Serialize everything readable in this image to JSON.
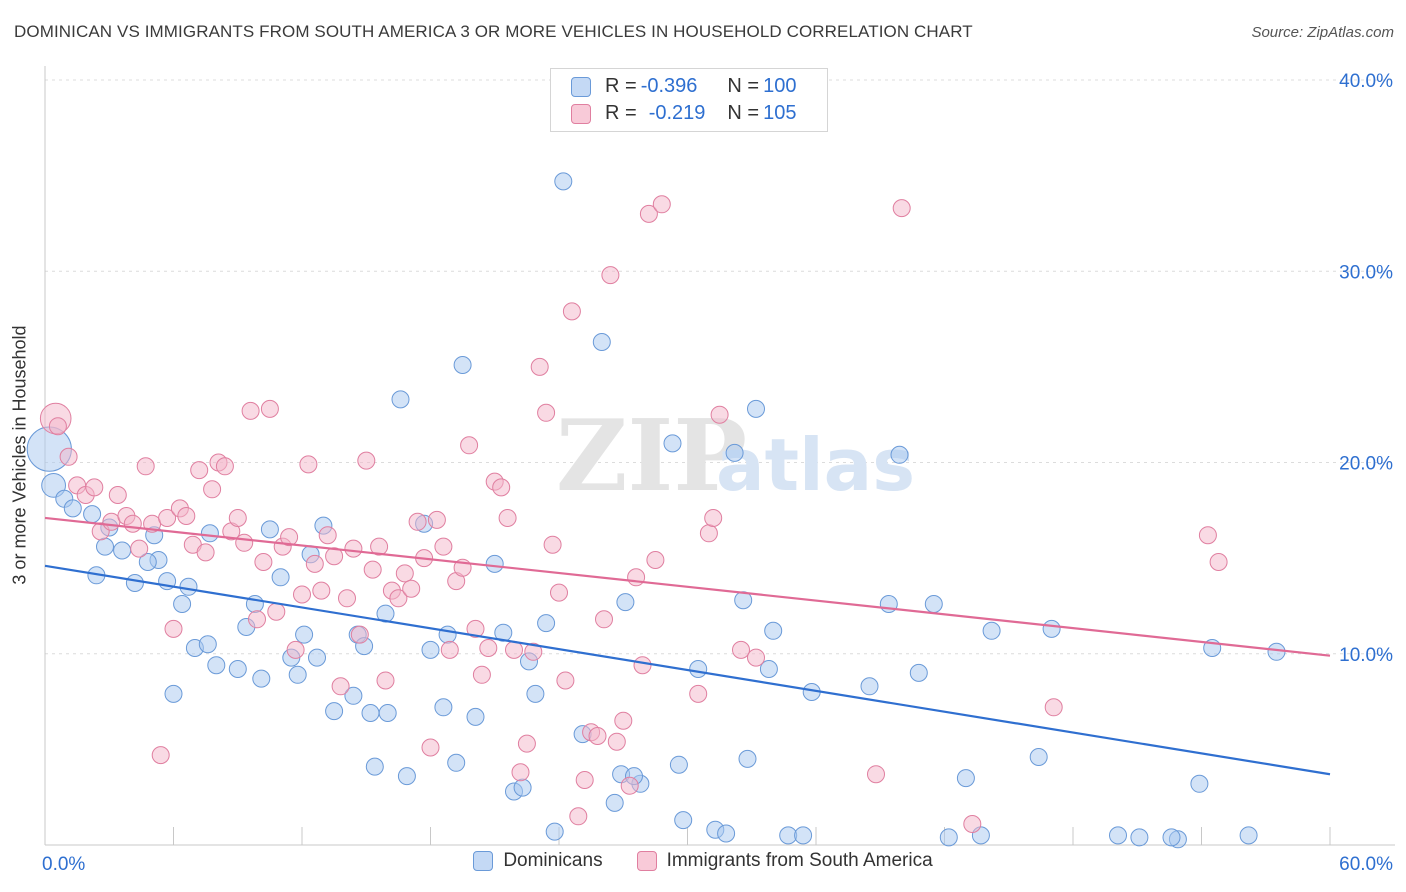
{
  "title": "DOMINICAN VS IMMIGRANTS FROM SOUTH AMERICA 3 OR MORE VEHICLES IN HOUSEHOLD CORRELATION CHART",
  "source": "Source: ZipAtlas.com",
  "watermark": {
    "zip": "ZIP",
    "atlas": "atlas"
  },
  "stats": [
    {
      "r_label": "R = ",
      "r_value": "-0.396",
      "n_label": "N = ",
      "n_value": "100",
      "color": "#a8c8f0"
    },
    {
      "r_label": "R = ",
      "r_value": "-0.219",
      "n_label": "N = ",
      "n_value": "105",
      "color": "#f4b6ca"
    }
  ],
  "legend": [
    {
      "label": "Dominicans",
      "color": "#a8c8f0",
      "border": "#6a9ad8"
    },
    {
      "label": "Immigrants from South America",
      "color": "#f4b6ca",
      "border": "#e07fa0"
    }
  ],
  "chart_data": {
    "type": "scatter",
    "title": "DOMINICAN VS IMMIGRANTS FROM SOUTH AMERICA 3 OR MORE VEHICLES IN HOUSEHOLD CORRELATION CHART",
    "ylabel": "3 or more Vehicles in Household",
    "xlabel": "",
    "xlim": [
      0,
      60
    ],
    "ylim": [
      0,
      40
    ],
    "x_tick_labels": [
      "0.0%",
      "60.0%"
    ],
    "y_ticks": [
      10,
      20,
      30,
      40
    ],
    "y_tick_labels": [
      "10.0%",
      "20.0%",
      "30.0%",
      "40.0%"
    ],
    "grid": true,
    "legend_position": "bottom",
    "series": [
      {
        "name": "Dominicans",
        "color": "#6a9ad8",
        "fill": "#a8c8f0",
        "line_color": "#2f6fd0",
        "trend": {
          "x": [
            0,
            60
          ],
          "y": [
            14.6,
            3.7
          ]
        },
        "points": [
          [
            0.2,
            20.7,
            2.6
          ],
          [
            0.4,
            18.8,
            1.4
          ],
          [
            0.9,
            18.1,
            1
          ],
          [
            1.3,
            17.6,
            1
          ],
          [
            2.2,
            17.3,
            1
          ],
          [
            3.0,
            16.6,
            1
          ],
          [
            2.8,
            15.6,
            1
          ],
          [
            3.6,
            15.4,
            1
          ],
          [
            5.1,
            16.2,
            1
          ],
          [
            2.4,
            14.1,
            1
          ],
          [
            4.2,
            13.7,
            1
          ],
          [
            5.3,
            14.9,
            1
          ],
          [
            4.8,
            14.8,
            1
          ],
          [
            5.7,
            13.8,
            1
          ],
          [
            6.4,
            12.6,
            1
          ],
          [
            6.7,
            13.5,
            1
          ],
          [
            7.7,
            16.3,
            1
          ],
          [
            7.0,
            10.3,
            1
          ],
          [
            7.6,
            10.5,
            1
          ],
          [
            8.0,
            9.4,
            1
          ],
          [
            9.0,
            9.2,
            1
          ],
          [
            6.0,
            7.9,
            1
          ],
          [
            9.4,
            11.4,
            1
          ],
          [
            9.8,
            12.6,
            1
          ],
          [
            10.1,
            8.7,
            1
          ],
          [
            10.5,
            16.5,
            1
          ],
          [
            11.0,
            14.0,
            1
          ],
          [
            11.5,
            9.8,
            1
          ],
          [
            11.8,
            8.9,
            1
          ],
          [
            12.1,
            11.0,
            1
          ],
          [
            12.7,
            9.8,
            1
          ],
          [
            13.0,
            16.7,
            1
          ],
          [
            12.4,
            15.2,
            1
          ],
          [
            13.5,
            7.0,
            1
          ],
          [
            14.4,
            7.8,
            1
          ],
          [
            14.6,
            11.0,
            1
          ],
          [
            14.9,
            10.4,
            1
          ],
          [
            15.2,
            6.9,
            1
          ],
          [
            15.4,
            4.1,
            1
          ],
          [
            15.9,
            12.1,
            1
          ],
          [
            16.0,
            6.9,
            1
          ],
          [
            16.6,
            23.3,
            1
          ],
          [
            16.9,
            3.6,
            1
          ],
          [
            17.7,
            16.8,
            1
          ],
          [
            18.0,
            10.2,
            1
          ],
          [
            18.6,
            7.2,
            1
          ],
          [
            18.8,
            11.0,
            1
          ],
          [
            19.2,
            4.3,
            1
          ],
          [
            19.5,
            25.1,
            1
          ],
          [
            20.1,
            6.7,
            1
          ],
          [
            21.0,
            14.7,
            1
          ],
          [
            21.4,
            11.1,
            1
          ],
          [
            21.9,
            2.8,
            1
          ],
          [
            22.3,
            3.0,
            1
          ],
          [
            22.6,
            9.6,
            1
          ],
          [
            22.9,
            7.9,
            1
          ],
          [
            23.4,
            11.6,
            1
          ],
          [
            23.8,
            0.7,
            1
          ],
          [
            24.2,
            34.7,
            1
          ],
          [
            25.1,
            5.8,
            1
          ],
          [
            26.0,
            26.3,
            1
          ],
          [
            26.6,
            2.2,
            1
          ],
          [
            27.1,
            12.7,
            1
          ],
          [
            26.9,
            3.7,
            1
          ],
          [
            27.8,
            3.2,
            1
          ],
          [
            27.5,
            3.6,
            1
          ],
          [
            29.3,
            21.0,
            1
          ],
          [
            29.6,
            4.2,
            1
          ],
          [
            30.5,
            9.2,
            1
          ],
          [
            29.8,
            1.3,
            1
          ],
          [
            31.3,
            0.8,
            1
          ],
          [
            31.8,
            0.6,
            1
          ],
          [
            32.2,
            20.5,
            1
          ],
          [
            32.6,
            12.8,
            1
          ],
          [
            32.8,
            4.5,
            1
          ],
          [
            33.2,
            22.8,
            1
          ],
          [
            33.8,
            9.2,
            1
          ],
          [
            34.0,
            11.2,
            1
          ],
          [
            34.7,
            0.5,
            1
          ],
          [
            35.4,
            0.5,
            1
          ],
          [
            35.8,
            8.0,
            1
          ],
          [
            38.5,
            8.3,
            1
          ],
          [
            39.4,
            12.6,
            1
          ],
          [
            39.9,
            20.4,
            1
          ],
          [
            40.8,
            9.0,
            1
          ],
          [
            41.5,
            12.6,
            1
          ],
          [
            42.2,
            0.4,
            1
          ],
          [
            43.0,
            3.5,
            1
          ],
          [
            43.7,
            0.5,
            1
          ],
          [
            44.2,
            11.2,
            1
          ],
          [
            46.4,
            4.6,
            1
          ],
          [
            47.0,
            11.3,
            1
          ],
          [
            50.1,
            0.5,
            1
          ],
          [
            51.1,
            0.4,
            1
          ],
          [
            52.9,
            0.3,
            1
          ],
          [
            52.6,
            0.4,
            1
          ],
          [
            53.9,
            3.2,
            1
          ],
          [
            54.5,
            10.3,
            1
          ],
          [
            57.5,
            10.1,
            1
          ],
          [
            56.2,
            0.5,
            1
          ]
        ]
      },
      {
        "name": "Immigrants from South America",
        "color": "#e07fa0",
        "fill": "#f4b6ca",
        "line_color": "#e06a95",
        "trend": {
          "x": [
            0,
            60
          ],
          "y": [
            17.1,
            9.9
          ]
        },
        "points": [
          [
            0.5,
            22.3,
            1.8
          ],
          [
            0.6,
            21.9,
            1
          ],
          [
            1.1,
            20.3,
            1
          ],
          [
            1.5,
            18.8,
            1
          ],
          [
            1.9,
            18.3,
            1
          ],
          [
            2.3,
            18.7,
            1
          ],
          [
            2.6,
            16.4,
            1
          ],
          [
            3.1,
            16.9,
            1
          ],
          [
            3.4,
            18.3,
            1
          ],
          [
            3.8,
            17.2,
            1
          ],
          [
            4.1,
            16.8,
            1
          ],
          [
            4.4,
            15.5,
            1
          ],
          [
            4.7,
            19.8,
            1
          ],
          [
            5.0,
            16.8,
            1
          ],
          [
            5.4,
            4.7,
            1
          ],
          [
            5.7,
            17.1,
            1
          ],
          [
            6.0,
            11.3,
            1
          ],
          [
            6.3,
            17.6,
            1
          ],
          [
            6.6,
            17.2,
            1
          ],
          [
            6.9,
            15.7,
            1
          ],
          [
            7.2,
            19.6,
            1
          ],
          [
            7.5,
            15.3,
            1
          ],
          [
            7.8,
            18.6,
            1
          ],
          [
            8.1,
            20.0,
            1
          ],
          [
            8.4,
            19.8,
            1
          ],
          [
            8.7,
            16.4,
            1
          ],
          [
            9.0,
            17.1,
            1
          ],
          [
            9.3,
            15.8,
            1
          ],
          [
            9.6,
            22.7,
            1
          ],
          [
            9.9,
            11.8,
            1
          ],
          [
            10.2,
            14.8,
            1
          ],
          [
            10.5,
            22.8,
            1
          ],
          [
            10.8,
            12.2,
            1
          ],
          [
            11.1,
            15.6,
            1
          ],
          [
            11.4,
            16.1,
            1
          ],
          [
            11.7,
            10.2,
            1
          ],
          [
            12.0,
            13.1,
            1
          ],
          [
            12.3,
            19.9,
            1
          ],
          [
            12.6,
            14.7,
            1
          ],
          [
            12.9,
            13.3,
            1
          ],
          [
            13.2,
            16.2,
            1
          ],
          [
            13.5,
            15.1,
            1
          ],
          [
            13.8,
            8.3,
            1
          ],
          [
            14.1,
            12.9,
            1
          ],
          [
            14.4,
            15.5,
            1
          ],
          [
            14.7,
            11.0,
            1
          ],
          [
            15.0,
            20.1,
            1
          ],
          [
            15.3,
            14.4,
            1
          ],
          [
            15.6,
            15.6,
            1
          ],
          [
            15.9,
            8.6,
            1
          ],
          [
            16.2,
            13.3,
            1
          ],
          [
            16.5,
            12.9,
            1
          ],
          [
            16.8,
            14.2,
            1
          ],
          [
            17.1,
            13.4,
            1
          ],
          [
            17.4,
            16.9,
            1
          ],
          [
            17.7,
            15.0,
            1
          ],
          [
            18.0,
            5.1,
            1
          ],
          [
            18.3,
            17.0,
            1
          ],
          [
            18.6,
            15.6,
            1
          ],
          [
            18.9,
            10.2,
            1
          ],
          [
            19.2,
            13.8,
            1
          ],
          [
            19.5,
            14.5,
            1
          ],
          [
            19.8,
            20.9,
            1
          ],
          [
            20.1,
            11.3,
            1
          ],
          [
            20.4,
            8.9,
            1
          ],
          [
            20.7,
            10.3,
            1
          ],
          [
            21.0,
            19.0,
            1
          ],
          [
            21.3,
            18.7,
            1
          ],
          [
            21.6,
            17.1,
            1
          ],
          [
            21.9,
            10.2,
            1
          ],
          [
            22.2,
            3.8,
            1
          ],
          [
            22.5,
            5.3,
            1
          ],
          [
            22.8,
            10.1,
            1
          ],
          [
            23.1,
            25.0,
            1
          ],
          [
            23.4,
            22.6,
            1
          ],
          [
            23.7,
            15.7,
            1
          ],
          [
            24.0,
            13.2,
            1
          ],
          [
            24.3,
            8.6,
            1
          ],
          [
            24.6,
            27.9,
            1
          ],
          [
            24.9,
            1.5,
            1
          ],
          [
            25.2,
            3.4,
            1
          ],
          [
            25.5,
            5.9,
            1
          ],
          [
            25.8,
            5.7,
            1
          ],
          [
            26.1,
            11.8,
            1
          ],
          [
            26.4,
            29.8,
            1
          ],
          [
            26.7,
            5.4,
            1
          ],
          [
            27.0,
            6.5,
            1
          ],
          [
            27.3,
            3.1,
            1
          ],
          [
            27.6,
            14.0,
            1
          ],
          [
            27.9,
            9.4,
            1
          ],
          [
            28.2,
            33.0,
            1
          ],
          [
            28.5,
            14.9,
            1
          ],
          [
            28.8,
            33.5,
            1
          ],
          [
            30.5,
            7.9,
            1
          ],
          [
            31.0,
            16.3,
            1
          ],
          [
            31.2,
            17.1,
            1
          ],
          [
            31.5,
            22.5,
            1
          ],
          [
            32.5,
            10.2,
            1
          ],
          [
            33.2,
            9.8,
            1
          ],
          [
            38.8,
            3.7,
            1
          ],
          [
            40.0,
            33.3,
            1
          ],
          [
            43.3,
            1.1,
            1
          ],
          [
            47.1,
            7.2,
            1
          ],
          [
            54.3,
            16.2,
            1
          ],
          [
            54.8,
            14.8,
            1
          ]
        ]
      }
    ]
  }
}
